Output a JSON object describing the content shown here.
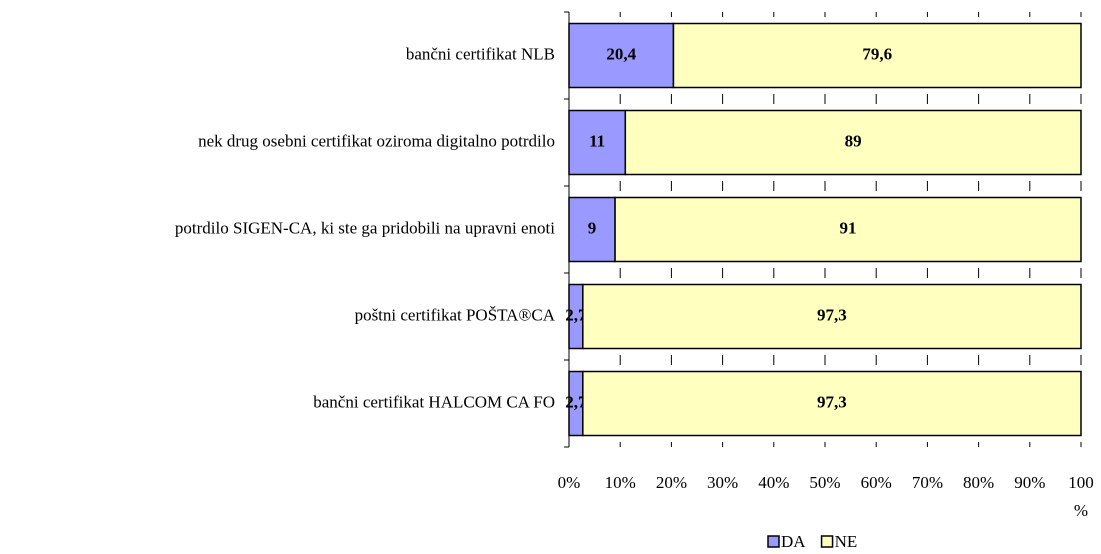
{
  "chart_data": {
    "type": "stacked_bar_horizontal",
    "categories": [
      "bančni certifikat NLB",
      "nek drug osebni certifikat oziroma digitalno potrdilo",
      "potrdilo SIGEN-CA, ki ste ga pridobili na upravni enoti",
      "poštni certifikat POŠTA®CA",
      "bančni certifikat HALCOM CA FO"
    ],
    "series": [
      {
        "name": "DA",
        "color": "#9999ff",
        "values": [
          20.4,
          11,
          9,
          2.7,
          2.7
        ],
        "value_labels": [
          "20,4",
          "11",
          "9",
          "2,7",
          "2,7"
        ]
      },
      {
        "name": "NE",
        "color": "#ffffc0",
        "values": [
          79.6,
          89,
          91,
          97.3,
          97.3
        ],
        "value_labels": [
          "79,6",
          "89",
          "91",
          "97,3",
          "97,3"
        ]
      }
    ],
    "xlim": [
      0,
      100
    ],
    "xticks": [
      {
        "value": 0,
        "label": "0%"
      },
      {
        "value": 10,
        "label": "10%"
      },
      {
        "value": 20,
        "label": "20%"
      },
      {
        "value": 30,
        "label": "30%"
      },
      {
        "value": 40,
        "label": "40%"
      },
      {
        "value": 50,
        "label": "50%"
      },
      {
        "value": 60,
        "label": "60%"
      },
      {
        "value": 70,
        "label": "70%"
      },
      {
        "value": 80,
        "label": "80%"
      },
      {
        "value": 90,
        "label": "90%"
      },
      {
        "value": 100,
        "label": "100 %"
      }
    ],
    "legend": "bottom"
  }
}
